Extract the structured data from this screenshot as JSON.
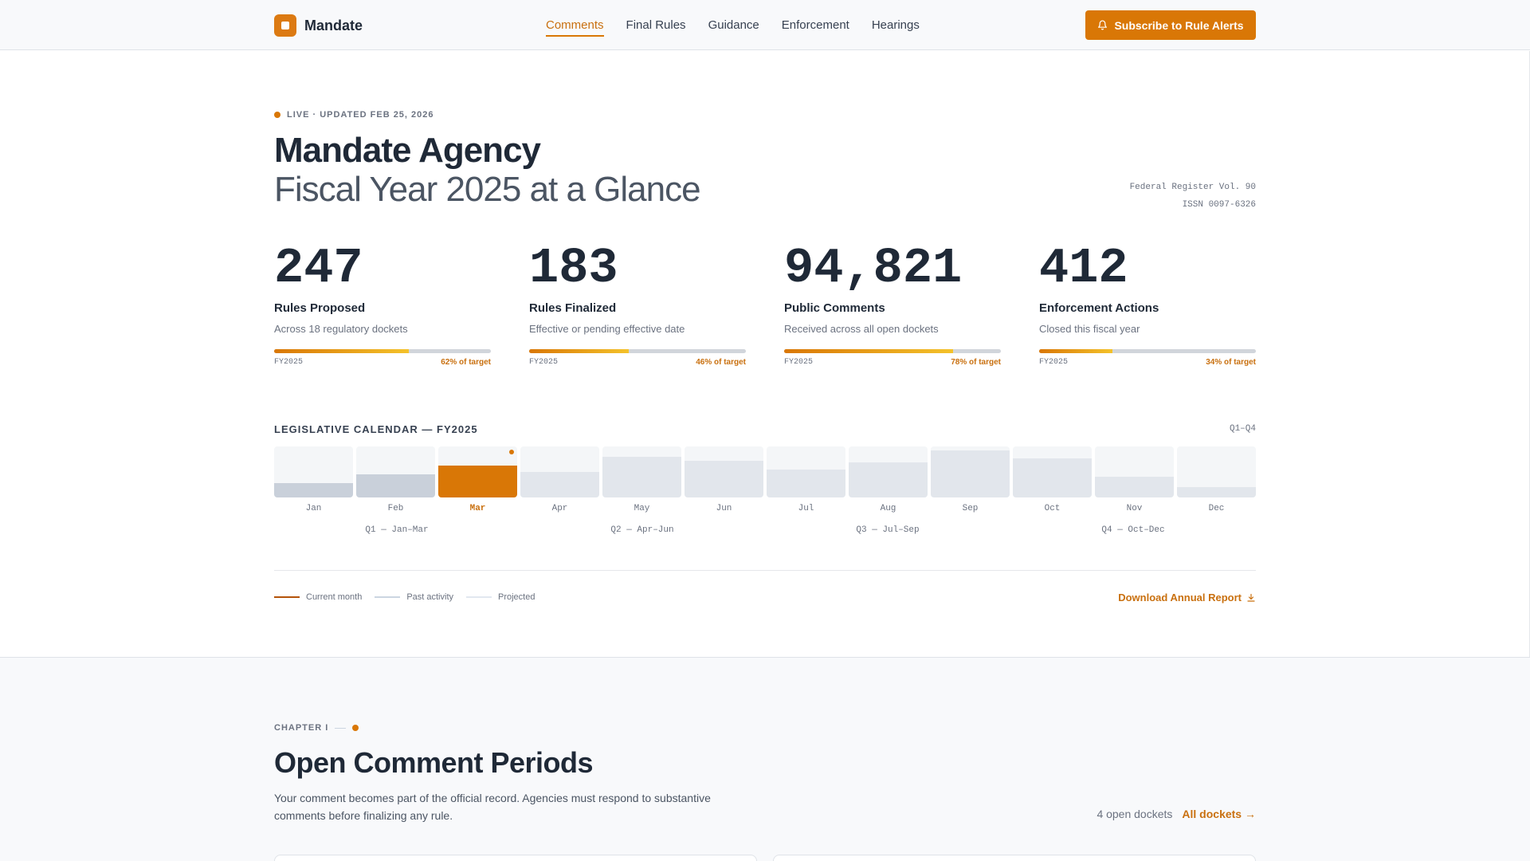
{
  "brand": {
    "name": "Mandate"
  },
  "nav": {
    "items": [
      {
        "label": "Comments",
        "active": true
      },
      {
        "label": "Final Rules",
        "active": false
      },
      {
        "label": "Guidance",
        "active": false
      },
      {
        "label": "Enforcement",
        "active": false
      },
      {
        "label": "Hearings",
        "active": false
      }
    ],
    "cta_label": "Subscribe to Rule Alerts",
    "cta_icon": "bell-icon"
  },
  "hero": {
    "live_label": "LIVE · UPDATED FEB 25, 2026",
    "title": "Mandate Agency",
    "subtitle": "Fiscal Year 2025 at a Glance",
    "meta_line1": "Federal Register Vol. 90",
    "meta_line2": "ISSN 0097-6326"
  },
  "stats": [
    {
      "value": "247",
      "label": "Rules Proposed",
      "sub": "Across 18 regulatory dockets",
      "fy": "FY2025",
      "progress": 0.62,
      "pct_label": "62% of target"
    },
    {
      "value": "183",
      "label": "Rules Finalized",
      "sub": "Effective or pending effective date",
      "fy": "FY2025",
      "progress": 0.46,
      "pct_label": "46% of target"
    },
    {
      "value": "94,821",
      "label": "Public Comments",
      "sub": "Received across all open dockets",
      "fy": "FY2025",
      "progress": 0.78,
      "pct_label": "78% of target"
    },
    {
      "value": "412",
      "label": "Enforcement Actions",
      "sub": "Closed this fiscal year",
      "fy": "FY2025",
      "progress": 0.34,
      "pct_label": "34% of target"
    }
  ],
  "calendar": {
    "heading": "LEGISLATIVE CALENDAR — FY2025",
    "range": "Q1–Q4",
    "months": [
      {
        "name": "Jan",
        "level": 0.28,
        "state": "past"
      },
      {
        "name": "Feb",
        "level": 0.45,
        "state": "past"
      },
      {
        "name": "Mar",
        "level": 0.62,
        "state": "current"
      },
      {
        "name": "Apr",
        "level": 0.5,
        "state": "projected"
      },
      {
        "name": "May",
        "level": 0.8,
        "state": "projected"
      },
      {
        "name": "Jun",
        "level": 0.72,
        "state": "projected"
      },
      {
        "name": "Jul",
        "level": 0.55,
        "state": "projected"
      },
      {
        "name": "Aug",
        "level": 0.68,
        "state": "projected"
      },
      {
        "name": "Sep",
        "level": 0.92,
        "state": "projected"
      },
      {
        "name": "Oct",
        "level": 0.76,
        "state": "projected"
      },
      {
        "name": "Nov",
        "level": 0.4,
        "state": "projected"
      },
      {
        "name": "Dec",
        "level": 0.2,
        "state": "projected"
      }
    ],
    "quarters": [
      "Q1 — Jan–Mar",
      "Q2 — Apr–Jun",
      "Q3 — Jul–Sep",
      "Q4 — Oct–Dec"
    ]
  },
  "legend": {
    "items": [
      {
        "label": "Current month",
        "color": "#b45309"
      },
      {
        "label": "Past activity",
        "color": "#cbd5e1"
      },
      {
        "label": "Projected",
        "color": "#e2e8f0"
      }
    ],
    "download_label": "Download Annual Report",
    "download_icon": "download-icon"
  },
  "chapter": {
    "eyebrow": "CHAPTER I",
    "title": "Open Comment Periods",
    "description": "Your comment becomes part of the official record. Agencies must respond to substantive comments before finalizing any rule.",
    "open_count": "4 open dockets",
    "all_link": "All dockets →"
  },
  "colors": {
    "accent": "#d97706",
    "accent_text": "#c9700f",
    "ink": "#1f2937"
  }
}
